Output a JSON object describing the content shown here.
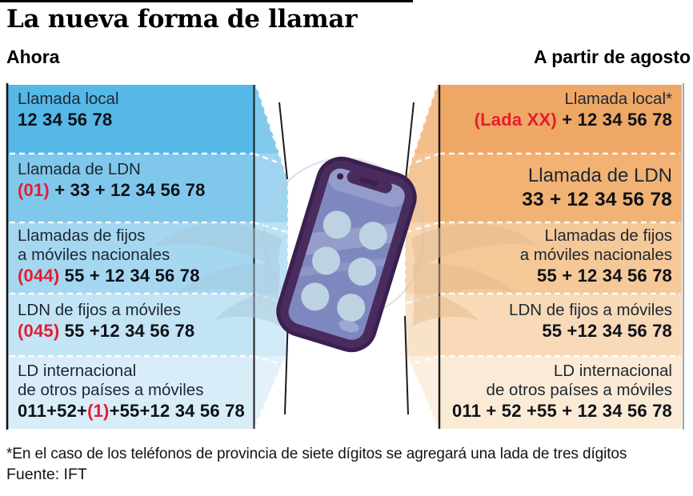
{
  "title": "La nueva forma de llamar",
  "columns": {
    "left_header": "Ahora",
    "right_header": "A partir de agosto"
  },
  "rows_left": [
    {
      "label_lines": [
        "Llamada local"
      ],
      "number_parts": [
        {
          "text": "12 34 56 78",
          "red": false
        }
      ]
    },
    {
      "label_lines": [
        "Llamada de LDN"
      ],
      "number_parts": [
        {
          "text": "(01)",
          "red": true
        },
        {
          "text": " + 33 + 12 34 56 78",
          "red": false
        }
      ]
    },
    {
      "label_lines": [
        "Llamadas de fijos",
        "a móviles nacionales"
      ],
      "number_parts": [
        {
          "text": "(044)",
          "red": true
        },
        {
          "text": " 55 + 12 34 56 78",
          "red": false
        }
      ]
    },
    {
      "label_lines": [
        "LDN de fijos a móviles"
      ],
      "number_parts": [
        {
          "text": "(045)",
          "red": true
        },
        {
          "text": " 55 +12 34 56 78",
          "red": false
        }
      ]
    },
    {
      "label_lines": [
        "LD internacional",
        "de otros países a móviles"
      ],
      "number_parts": [
        {
          "text": "011+52+",
          "red": false
        },
        {
          "text": "(1)",
          "red": true
        },
        {
          "text": "+55+12 34 56 78",
          "red": false
        }
      ]
    }
  ],
  "rows_right": [
    {
      "label_lines": [
        "Llamada local*"
      ],
      "number_parts": [
        {
          "text": "(Lada XX)",
          "red": true
        },
        {
          "text": " + 12 34 56 78",
          "red": false
        }
      ]
    },
    {
      "label_lines": [
        "Llamada de LDN"
      ],
      "number_parts": [
        {
          "text": "33 + 12 34 56 78",
          "red": false
        }
      ]
    },
    {
      "label_lines": [
        "Llamadas de fijos",
        "a móviles nacionales"
      ],
      "number_parts": [
        {
          "text": "55 + 12 34 56 78",
          "red": false
        }
      ]
    },
    {
      "label_lines": [
        "LDN de fijos a móviles"
      ],
      "number_parts": [
        {
          "text": "55 +12 34 56 78",
          "red": false
        }
      ]
    },
    {
      "label_lines": [
        "LD internacional",
        "de otros países a móviles"
      ],
      "number_parts": [
        {
          "text": "011 + 52 +55 + 12 34 56 78",
          "red": false
        }
      ]
    }
  ],
  "footnote": "*En el caso de los teléfonos de provincia de siete dígitos se agregará una lada de tres dígitos",
  "source": "Fuente: IFT",
  "colors": {
    "red": "#e51c30",
    "label_text": "#1d2733",
    "number_text": "#0d1117",
    "left_bands": [
      "#55b8e7",
      "#7fc8eb",
      "#a5d7f1",
      "#c3e4f5",
      "#d9edf9"
    ],
    "right_bands": [
      "#efa765",
      "#f1b274",
      "#f5c897",
      "#f8d9b8",
      "#fbead5"
    ],
    "phone_body": "#4a2b5e",
    "phone_outline": "#3a2050",
    "phone_screen": "#7e88bf",
    "phone_dots": "#bdd3e2",
    "wing_left": "#a6c8db",
    "wing_right": "#e3bb8e"
  }
}
